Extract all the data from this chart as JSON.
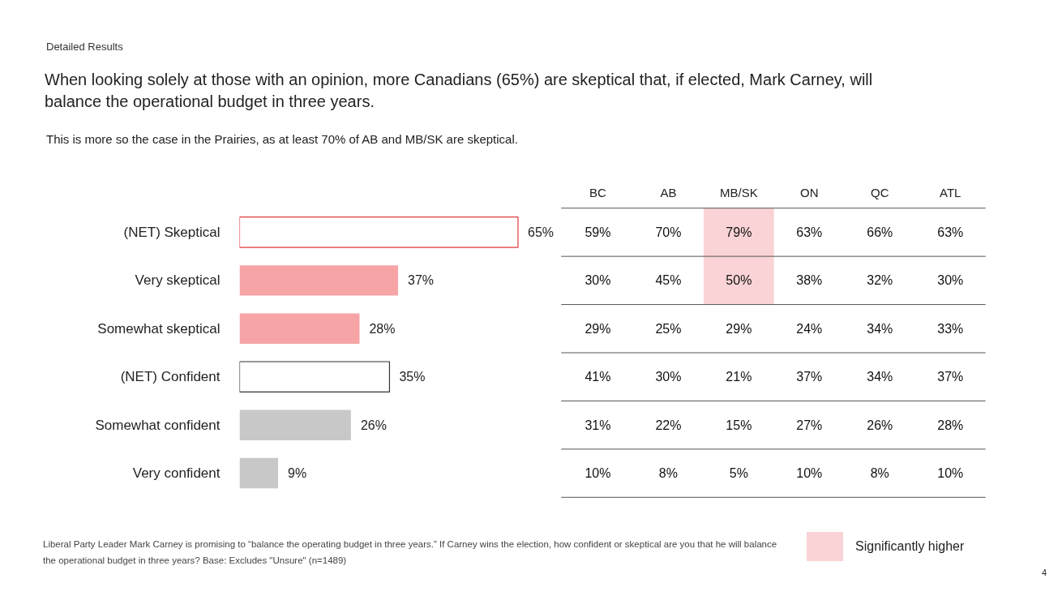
{
  "chart_data": [
    {
      "type": "bar",
      "orientation": "horizontal",
      "title": "When looking solely at those with an opinion, more Canadians (65%) are skeptical that,  if elected, Mark Carney, will balance the operational budget in three years.",
      "subtitle": "This is more so the case in the Prairies, as at least 70% of AB and MB/SK are skeptical.",
      "categories": [
        "(NET) Skeptical",
        "Very skeptical",
        "Somewhat skeptical",
        "(NET) Confident",
        "Somewhat confident",
        "Very confident"
      ],
      "values": [
        65,
        37,
        28,
        35,
        26,
        9
      ],
      "colors": [
        "#ffffff",
        "#f7a4a7",
        "#f7a4a7",
        "#ffffff",
        "#c8c8c8",
        "#c8c8c8"
      ],
      "value_labels": [
        "65%",
        "37%",
        "28%",
        "35%",
        "26%",
        "9%"
      ],
      "annotations": [
        "Detailed Results",
        "Liberal Party Leader Mark Carney is promising to “balance the operating budget in three years.” If Carney wins the election, how confident or skeptical are you that he will balance the operational budget in three years? Base: Excludes \"Unsure\" (n=1489)",
        "4"
      ]
    },
    {
      "type": "heatmap",
      "categories": [
        "BC",
        "AB",
        "MB/SK",
        "ON",
        "QC",
        "ATL"
      ],
      "y_categories": [
        null,
        null,
        null,
        null,
        null,
        null
      ],
      "cells": [
        [
          59,
          70,
          79,
          63,
          66,
          63
        ],
        [
          30,
          45,
          50,
          38,
          32,
          30
        ],
        [
          29,
          25,
          29,
          24,
          34,
          33
        ],
        [
          41,
          30,
          21,
          37,
          34,
          37
        ],
        [
          31,
          22,
          15,
          27,
          26,
          28
        ],
        [
          10,
          8,
          5,
          10,
          8,
          10
        ]
      ],
      "cell_labels": [
        [
          "59%",
          "70%",
          "79%",
          "63%",
          "66%",
          "63%"
        ],
        [
          "30%",
          "45%",
          "50%",
          "38%",
          "32%",
          "30%"
        ],
        [
          "29%",
          "25%",
          "29%",
          "24%",
          "34%",
          "33%"
        ],
        [
          "41%",
          "30%",
          "21%",
          "37%",
          "34%",
          "37%"
        ],
        [
          "31%",
          "22%",
          "15%",
          "27%",
          "26%",
          "28%"
        ],
        [
          "10%",
          "8%",
          "5%",
          "10%",
          "8%",
          "10%"
        ]
      ],
      "colors": [
        [
          "#ffffff",
          "#ffffff",
          "#f9d3d5",
          "#ffffff",
          "#ffffff",
          "#ffffff"
        ],
        [
          "#ffffff",
          "#ffffff",
          "#f9d3d5",
          "#ffffff",
          "#ffffff",
          "#ffffff"
        ],
        [
          "#ffffff",
          "#ffffff",
          "#ffffff",
          "#ffffff",
          "#ffffff",
          "#ffffff"
        ],
        [
          "#ffffff",
          "#ffffff",
          "#ffffff",
          "#ffffff",
          "#ffffff",
          "#ffffff"
        ],
        [
          "#ffffff",
          "#ffffff",
          "#ffffff",
          "#ffffff",
          "#ffffff",
          "#ffffff"
        ],
        [
          "#ffffff",
          "#ffffff",
          "#ffffff",
          "#ffffff",
          "#ffffff",
          "#ffffff"
        ]
      ],
      "annotations": [
        "Significantly higher"
      ]
    }
  ]
}
